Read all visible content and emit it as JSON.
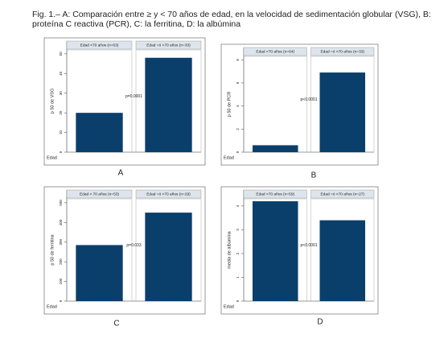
{
  "caption": "Fig. 1.– A: Comparación entre ≥ y < 70 años de edad, en la velocidad de sedimentación globular (VSG), B: proteína C reactiva (PCR), C: la ferritina, D: la albúmina",
  "chart_data": [
    {
      "type": "bar",
      "panel_label": "A",
      "ylabel": "p 50 de VSG",
      "xlabel": "Edad",
      "categories": [
        "Edad <70 años (n=63)",
        "Edad =ó >70 años (n=33)"
      ],
      "values": [
        20,
        48
      ],
      "color": "#0b3f6b",
      "ylim": [
        0,
        52
      ],
      "yticks": [
        0,
        10,
        20,
        30,
        40,
        50
      ],
      "annotation": "p=0.0001"
    },
    {
      "type": "bar",
      "panel_label": "B",
      "ylabel": "p 50 de PCR",
      "xlabel": "Edad",
      "categories": [
        "Edad <70 años (n=64)",
        "Edad =ó >70 años (n=33)"
      ],
      "values": [
        0.6,
        6.9
      ],
      "color": "#0b3f6b",
      "ylim": [
        0,
        8.3
      ],
      "yticks": [
        0,
        2,
        4,
        6,
        8
      ],
      "annotation": "p<0.0001"
    },
    {
      "type": "bar",
      "panel_label": "C",
      "ylabel": "p 50 de ferritina",
      "xlabel": "Edad",
      "categories": [
        "Edad < 70 años (n=53)",
        "Edad =ó >70 años (n=29)"
      ],
      "values": [
        285,
        450
      ],
      "color": "#0b3f6b",
      "ylim": [
        0,
        520
      ],
      "yticks": [
        0,
        100,
        200,
        300,
        400,
        500
      ],
      "annotation": "p=0.033"
    },
    {
      "type": "bar",
      "panel_label": "D",
      "ylabel": "media de albúmina",
      "xlabel": "Edad",
      "categories": [
        "Edad <70 años (n=59)",
        "Edad =ó >70 años (n=27)"
      ],
      "values": [
        4.2,
        3.4
      ],
      "color": "#0b3f6b",
      "ylim": [
        0,
        4.3
      ],
      "yticks": [
        0,
        1,
        2,
        3,
        4
      ],
      "annotation": "p<0.0001"
    }
  ]
}
